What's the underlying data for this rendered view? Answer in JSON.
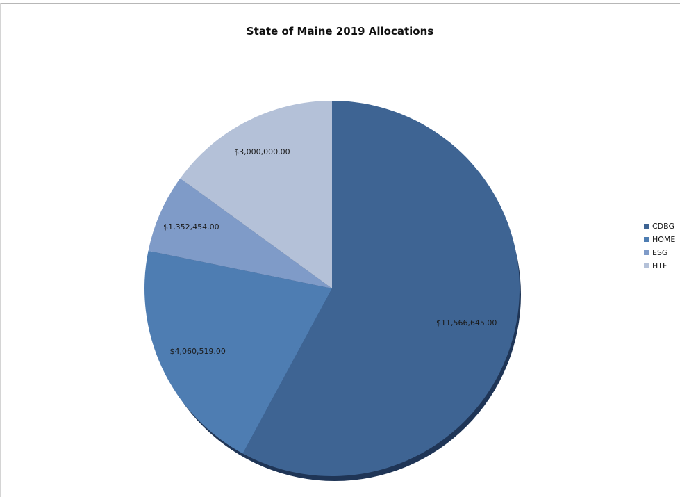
{
  "chart_data": {
    "type": "pie",
    "title": "State of Maine 2019 Allocations",
    "slices": [
      {
        "name": "CDBG",
        "value": 11566645.0,
        "label": "$11,566,645.00",
        "color": "#3e6493"
      },
      {
        "name": "HOME",
        "value": 4060519.0,
        "label": "$4,060,519.00",
        "color": "#4e7db2"
      },
      {
        "name": "ESG",
        "value": 1352454.0,
        "label": "$1,352,454.00",
        "color": "#7f9bc8"
      },
      {
        "name": "HTF",
        "value": 3000000.0,
        "label": "$3,000,000.00",
        "color": "#b4c1d8"
      }
    ],
    "legend_position": "right",
    "grid": false
  }
}
